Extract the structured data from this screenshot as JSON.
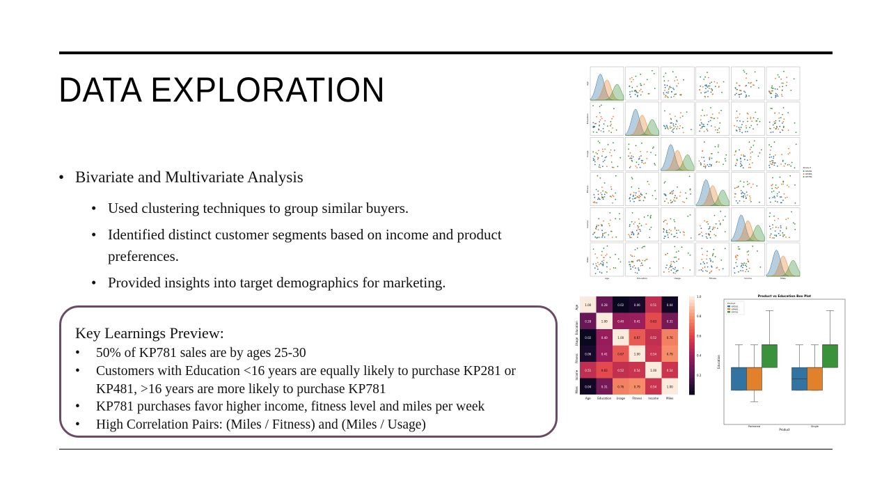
{
  "slide": {
    "title": "DATA EXPLORATION",
    "bullet": "Bivariate and Multivariate Analysis",
    "subbullets": [
      "Used clustering techniques to group similar buyers.",
      "Identified distinct customer segments based on income and product preferences.",
      "Provided insights into target demographics for marketing."
    ]
  },
  "key_learnings": {
    "title": "Key Learnings Preview:",
    "items": [
      "50% of KP781 sales are by ages 25-30",
      "Customers with Education <16 years are equally likely to purchase KP281 or KP481, >16 years are more likely to purchase KP781",
      "KP781 purchases favor higher income, fitness level and miles per week",
      "High Correlation Pairs: (Miles / Fitness) and (Miles / Usage)"
    ]
  },
  "colors": {
    "KP281": "#3274a1",
    "KP481": "#e1812c",
    "KP781": "#3a923a",
    "box_border": "#6b4a66"
  },
  "pairplot": {
    "variables": [
      "Age",
      "Education",
      "Usage",
      "Fitness",
      "Income",
      "Miles"
    ],
    "legend_title": "Product",
    "legend": [
      "KP281",
      "KP481",
      "KP781"
    ]
  },
  "heatmap": {
    "labels": [
      "Age",
      "Education",
      "Usage",
      "Fitness",
      "Income",
      "Miles"
    ],
    "values": [
      [
        1.0,
        0.28,
        0.02,
        0.06,
        0.51,
        0.04
      ],
      [
        0.28,
        1.0,
        0.4,
        0.41,
        0.63,
        0.31
      ],
      [
        0.02,
        0.4,
        1.0,
        0.67,
        0.52,
        0.76
      ],
      [
        0.06,
        0.41,
        0.67,
        1.0,
        0.54,
        0.79
      ],
      [
        0.51,
        0.63,
        0.52,
        0.54,
        1.0,
        0.54
      ],
      [
        0.04,
        0.31,
        0.76,
        0.79,
        0.54,
        1.0
      ]
    ],
    "colorbar_ticks": [
      "1.0",
      "0.8",
      "0.6",
      "0.4",
      "0.2"
    ]
  },
  "boxplot": {
    "title": "Product vs Education Box Plot",
    "xlabel": "Product",
    "ylabel": "Education",
    "groups": [
      "Partnered",
      "Single"
    ],
    "legend_title": "Product",
    "legend": [
      "KP281",
      "KP481",
      "KP781"
    ],
    "ylim": [
      11,
      22
    ],
    "series": [
      {
        "name": "KP281",
        "boxes": [
          [
            14,
            14,
            16,
            16,
            18
          ],
          [
            14,
            14,
            15,
            16,
            18
          ]
        ]
      },
      {
        "name": "KP481",
        "boxes": [
          [
            13,
            14,
            16,
            16,
            18
          ],
          [
            14,
            14,
            16,
            16,
            18
          ]
        ]
      },
      {
        "name": "KP781",
        "boxes": [
          [
            16,
            16,
            18,
            18,
            21
          ],
          [
            16,
            16,
            18,
            18,
            21
          ]
        ]
      }
    ]
  }
}
